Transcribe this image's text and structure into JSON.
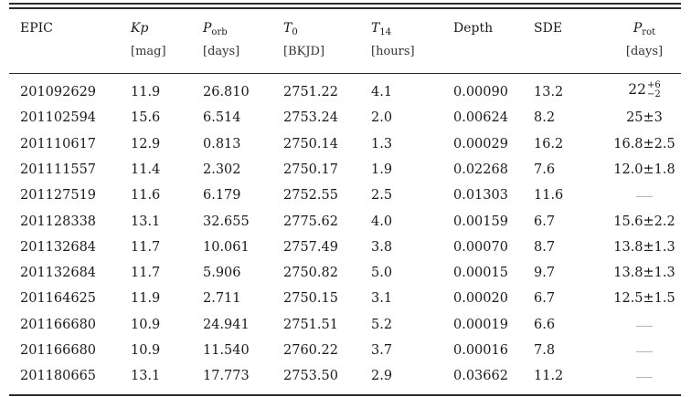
{
  "table": {
    "headers": [
      {
        "main": "EPIC",
        "sub": "",
        "unit": ""
      },
      {
        "main": "Kp",
        "sub": "",
        "unit": "[mag]"
      },
      {
        "main": "P",
        "sub": "orb",
        "unit": "[days]"
      },
      {
        "main": "T",
        "sub": "0",
        "unit": "[BKJD]"
      },
      {
        "main": "T",
        "sub": "14",
        "unit": "[hours]"
      },
      {
        "main": "Depth",
        "sub": "",
        "unit": ""
      },
      {
        "main": "SDE",
        "sub": "",
        "unit": ""
      },
      {
        "main": "P",
        "sub": "rot",
        "unit": "[days]"
      }
    ],
    "rows": [
      {
        "epic": "201092629",
        "kp": "11.9",
        "porb": "26.810",
        "t0": "2751.22",
        "t14": "4.1",
        "depth": "0.00090",
        "sde": "13.2",
        "prot": "22",
        "prot_up": "+6",
        "prot_down": "−2"
      },
      {
        "epic": "201102594",
        "kp": "15.6",
        "porb": "6.514",
        "t0": "2753.24",
        "t14": "2.0",
        "depth": "0.00624",
        "sde": "8.2",
        "prot": "25±3"
      },
      {
        "epic": "201110617",
        "kp": "12.9",
        "porb": "0.813",
        "t0": "2750.14",
        "t14": "1.3",
        "depth": "0.00029",
        "sde": "16.2",
        "prot": "16.8±2.5"
      },
      {
        "epic": "201111557",
        "kp": "11.4",
        "porb": "2.302",
        "t0": "2750.17",
        "t14": "1.9",
        "depth": "0.02268",
        "sde": "7.6",
        "prot": "12.0±1.8"
      },
      {
        "epic": "201127519",
        "kp": "11.6",
        "porb": "6.179",
        "t0": "2752.55",
        "t14": "2.5",
        "depth": "0.01303",
        "sde": "11.6",
        "prot": ""
      },
      {
        "epic": "201128338",
        "kp": "13.1",
        "porb": "32.655",
        "t0": "2775.62",
        "t14": "4.0",
        "depth": "0.00159",
        "sde": "6.7",
        "prot": "15.6±2.2"
      },
      {
        "epic": "201132684",
        "kp": "11.7",
        "porb": "10.061",
        "t0": "2757.49",
        "t14": "3.8",
        "depth": "0.00070",
        "sde": "8.7",
        "prot": "13.8±1.3"
      },
      {
        "epic": "201132684",
        "kp": "11.7",
        "porb": "5.906",
        "t0": "2750.82",
        "t14": "5.0",
        "depth": "0.00015",
        "sde": "9.7",
        "prot": "13.8±1.3"
      },
      {
        "epic": "201164625",
        "kp": "11.9",
        "porb": "2.711",
        "t0": "2750.15",
        "t14": "3.1",
        "depth": "0.00020",
        "sde": "6.7",
        "prot": "12.5±1.5"
      },
      {
        "epic": "201166680",
        "kp": "10.9",
        "porb": "24.941",
        "t0": "2751.51",
        "t14": "5.2",
        "depth": "0.00019",
        "sde": "6.6",
        "prot": ""
      },
      {
        "epic": "201166680",
        "kp": "10.9",
        "porb": "11.540",
        "t0": "2760.22",
        "t14": "3.7",
        "depth": "0.00016",
        "sde": "7.8",
        "prot": ""
      },
      {
        "epic": "201180665",
        "kp": "13.1",
        "porb": "17.773",
        "t0": "2753.50",
        "t14": "2.9",
        "depth": "0.03662",
        "sde": "11.2",
        "prot": ""
      }
    ]
  }
}
